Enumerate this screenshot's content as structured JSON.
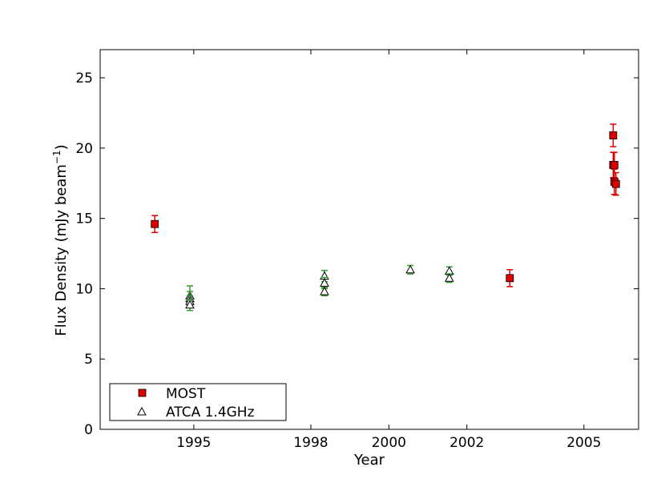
{
  "chart_data": {
    "type": "scatter",
    "xlabel": "Year",
    "ylabel": "Flux Density (mJy beam",
    "ylabel_sup": "−1",
    "ylabel_close": ")",
    "xlim": [
      1992.6,
      2006.4
    ],
    "ylim": [
      0,
      27
    ],
    "x_ticks": [
      1995,
      1998,
      2000,
      2002,
      2005
    ],
    "x_tick_labels": [
      "1995",
      "1998",
      "2000",
      "2002",
      "2005"
    ],
    "y_ticks": [
      0,
      5,
      10,
      15,
      20,
      25
    ],
    "y_tick_labels": [
      "0",
      "5",
      "10",
      "15",
      "20",
      "25"
    ],
    "grid": false,
    "legend_position": "lower-left",
    "series": [
      {
        "name": "MOST",
        "marker": "square",
        "color": "#dd0000",
        "edge_color": "#000000",
        "errorbar_color": "#dd0000",
        "points": [
          {
            "x": 1994.0,
            "y": 14.6,
            "err": 0.6
          },
          {
            "x": 2003.1,
            "y": 10.75,
            "err": 0.6
          },
          {
            "x": 2005.75,
            "y": 20.9,
            "err": 0.8
          },
          {
            "x": 2005.75,
            "y": 18.8,
            "err": 0.9
          },
          {
            "x": 2005.78,
            "y": 18.8,
            "err": 0.9
          },
          {
            "x": 2005.78,
            "y": 17.6,
            "err": 0.9
          },
          {
            "x": 2005.82,
            "y": 17.45,
            "err": 0.8
          }
        ]
      },
      {
        "name": "ATCA 1.4GHz",
        "marker": "triangle",
        "color": "#ffffff",
        "edge_color": "#000000",
        "errorbar_color": "#2e9e2e",
        "points": [
          {
            "x": 1994.9,
            "y": 9.5,
            "err": 0.7
          },
          {
            "x": 1994.9,
            "y": 9.3,
            "err": 0.5
          },
          {
            "x": 1994.9,
            "y": 9.1,
            "err": 0.4
          },
          {
            "x": 1994.9,
            "y": 8.85,
            "err": 0.4
          },
          {
            "x": 1998.35,
            "y": 10.9,
            "err": 0.4
          },
          {
            "x": 1998.35,
            "y": 10.4,
            "err": 0.4
          },
          {
            "x": 1998.35,
            "y": 9.8,
            "err": 0.3
          },
          {
            "x": 2000.55,
            "y": 11.35,
            "err": 0.3
          },
          {
            "x": 2001.55,
            "y": 11.25,
            "err": 0.3
          },
          {
            "x": 2001.55,
            "y": 10.75,
            "err": 0.3
          }
        ]
      }
    ]
  }
}
